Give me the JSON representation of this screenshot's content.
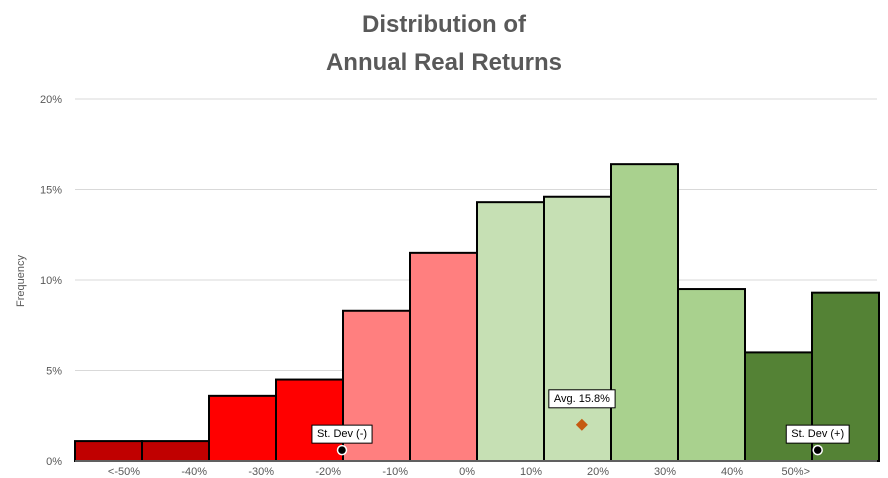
{
  "chart_data": {
    "type": "bar",
    "title_lines": [
      "Distribution of",
      "Annual Real Returns"
    ],
    "ylabel": "Frequency",
    "ylim": [
      0,
      20
    ],
    "y_ticks": [
      "0%",
      "5%",
      "10%",
      "15%",
      "20%"
    ],
    "x_ticks": [
      "<-50%",
      "-40%",
      "-30%",
      "-20%",
      "-10%",
      "0%",
      "10%",
      "20%",
      "30%",
      "40%",
      "50%>"
    ],
    "grid": true,
    "bins": [
      {
        "value": 1.1,
        "color": "#C00000"
      },
      {
        "value": 1.1,
        "color": "#C00000"
      },
      {
        "value": 3.6,
        "color": "#FF0000"
      },
      {
        "value": 4.5,
        "color": "#FF0000"
      },
      {
        "value": 8.3,
        "color": "#FF7F7F"
      },
      {
        "value": 11.5,
        "color": "#FF7F7F"
      },
      {
        "value": 14.3,
        "color": "#C6E0B4"
      },
      {
        "value": 14.6,
        "color": "#C6E0B4"
      },
      {
        "value": 16.4,
        "color": "#A9D18E"
      },
      {
        "value": 9.5,
        "color": "#A9D18E"
      },
      {
        "value": 6.0,
        "color": "#548235"
      },
      {
        "value": 9.3,
        "color": "#548235"
      }
    ],
    "annotations": [
      {
        "label": "St. Dev (-)",
        "x": -20,
        "y": 0.6,
        "marker": "circle",
        "color": "#000000"
      },
      {
        "label": "Avg. 15.8%",
        "x": 15.8,
        "y": 2.0,
        "marker": "diamond",
        "color": "#C55A11"
      },
      {
        "label": "St. Dev (+)",
        "x": 51,
        "y": 0.6,
        "marker": "circle",
        "color": "#000000"
      }
    ]
  }
}
